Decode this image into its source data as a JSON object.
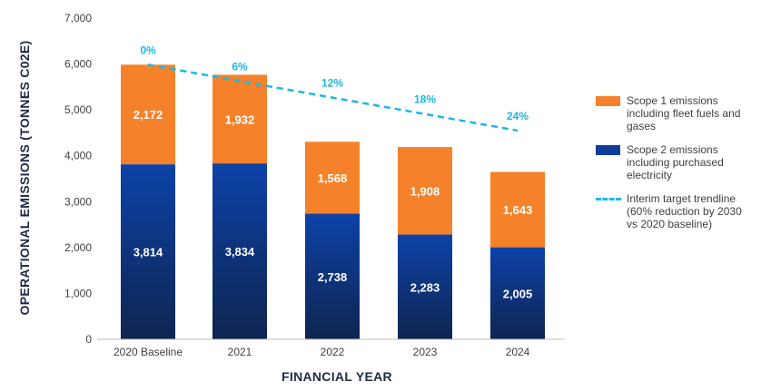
{
  "chart_data": {
    "type": "bar",
    "stacked": true,
    "categories": [
      "2020 Baseline",
      "2021",
      "2022",
      "2023",
      "2024"
    ],
    "series": [
      {
        "name": "Scope 2 emissions including purchased electricity",
        "values": [
          3814,
          3834,
          2738,
          2283,
          2005
        ],
        "labels": [
          "3,814",
          "3,834",
          "2,738",
          "2,283",
          "2,005"
        ],
        "color": "#0d3d9e"
      },
      {
        "name": "Scope 1 emissions including fleet fuels and gases",
        "values": [
          2172,
          1932,
          1568,
          1908,
          1643
        ],
        "labels": [
          "2,172",
          "1,932",
          "1,568",
          "1,908",
          "1,643"
        ],
        "color": "#f5822a"
      }
    ],
    "trendline": {
      "name": "Interim target trendline (60% reduction by 2030 vs 2020 baseline)",
      "values": [
        5986,
        5627,
        5268,
        4909,
        4549
      ],
      "labels": [
        "0%",
        "6%",
        "12%",
        "18%",
        "24%"
      ],
      "color": "#1ab8e6"
    },
    "xlabel": "FINANCIAL YEAR",
    "ylabel": "OPERATIONAL EMISSIONS (TONNES C02E)",
    "ylim": [
      0,
      7000
    ],
    "yticks": [
      "0",
      "1,000",
      "2,000",
      "3,000",
      "4,000",
      "5,000",
      "6,000",
      "7,000"
    ],
    "grid": false,
    "legend_position": "right"
  },
  "legend": {
    "scope1": [
      "Scope 1 emissions",
      "including fleet fuels and",
      "gases"
    ],
    "scope2": [
      "Scope 2 emissions",
      "including purchased",
      "electricity"
    ],
    "trend": [
      "Interim target trendline",
      "(60% reduction by 2030",
      "vs 2020 baseline)"
    ]
  },
  "colors": {
    "scope1": "#f5822a",
    "scope2": "#0d3d9e",
    "scope2_dark": "#0e2a5c",
    "trend": "#1ab8e6"
  }
}
